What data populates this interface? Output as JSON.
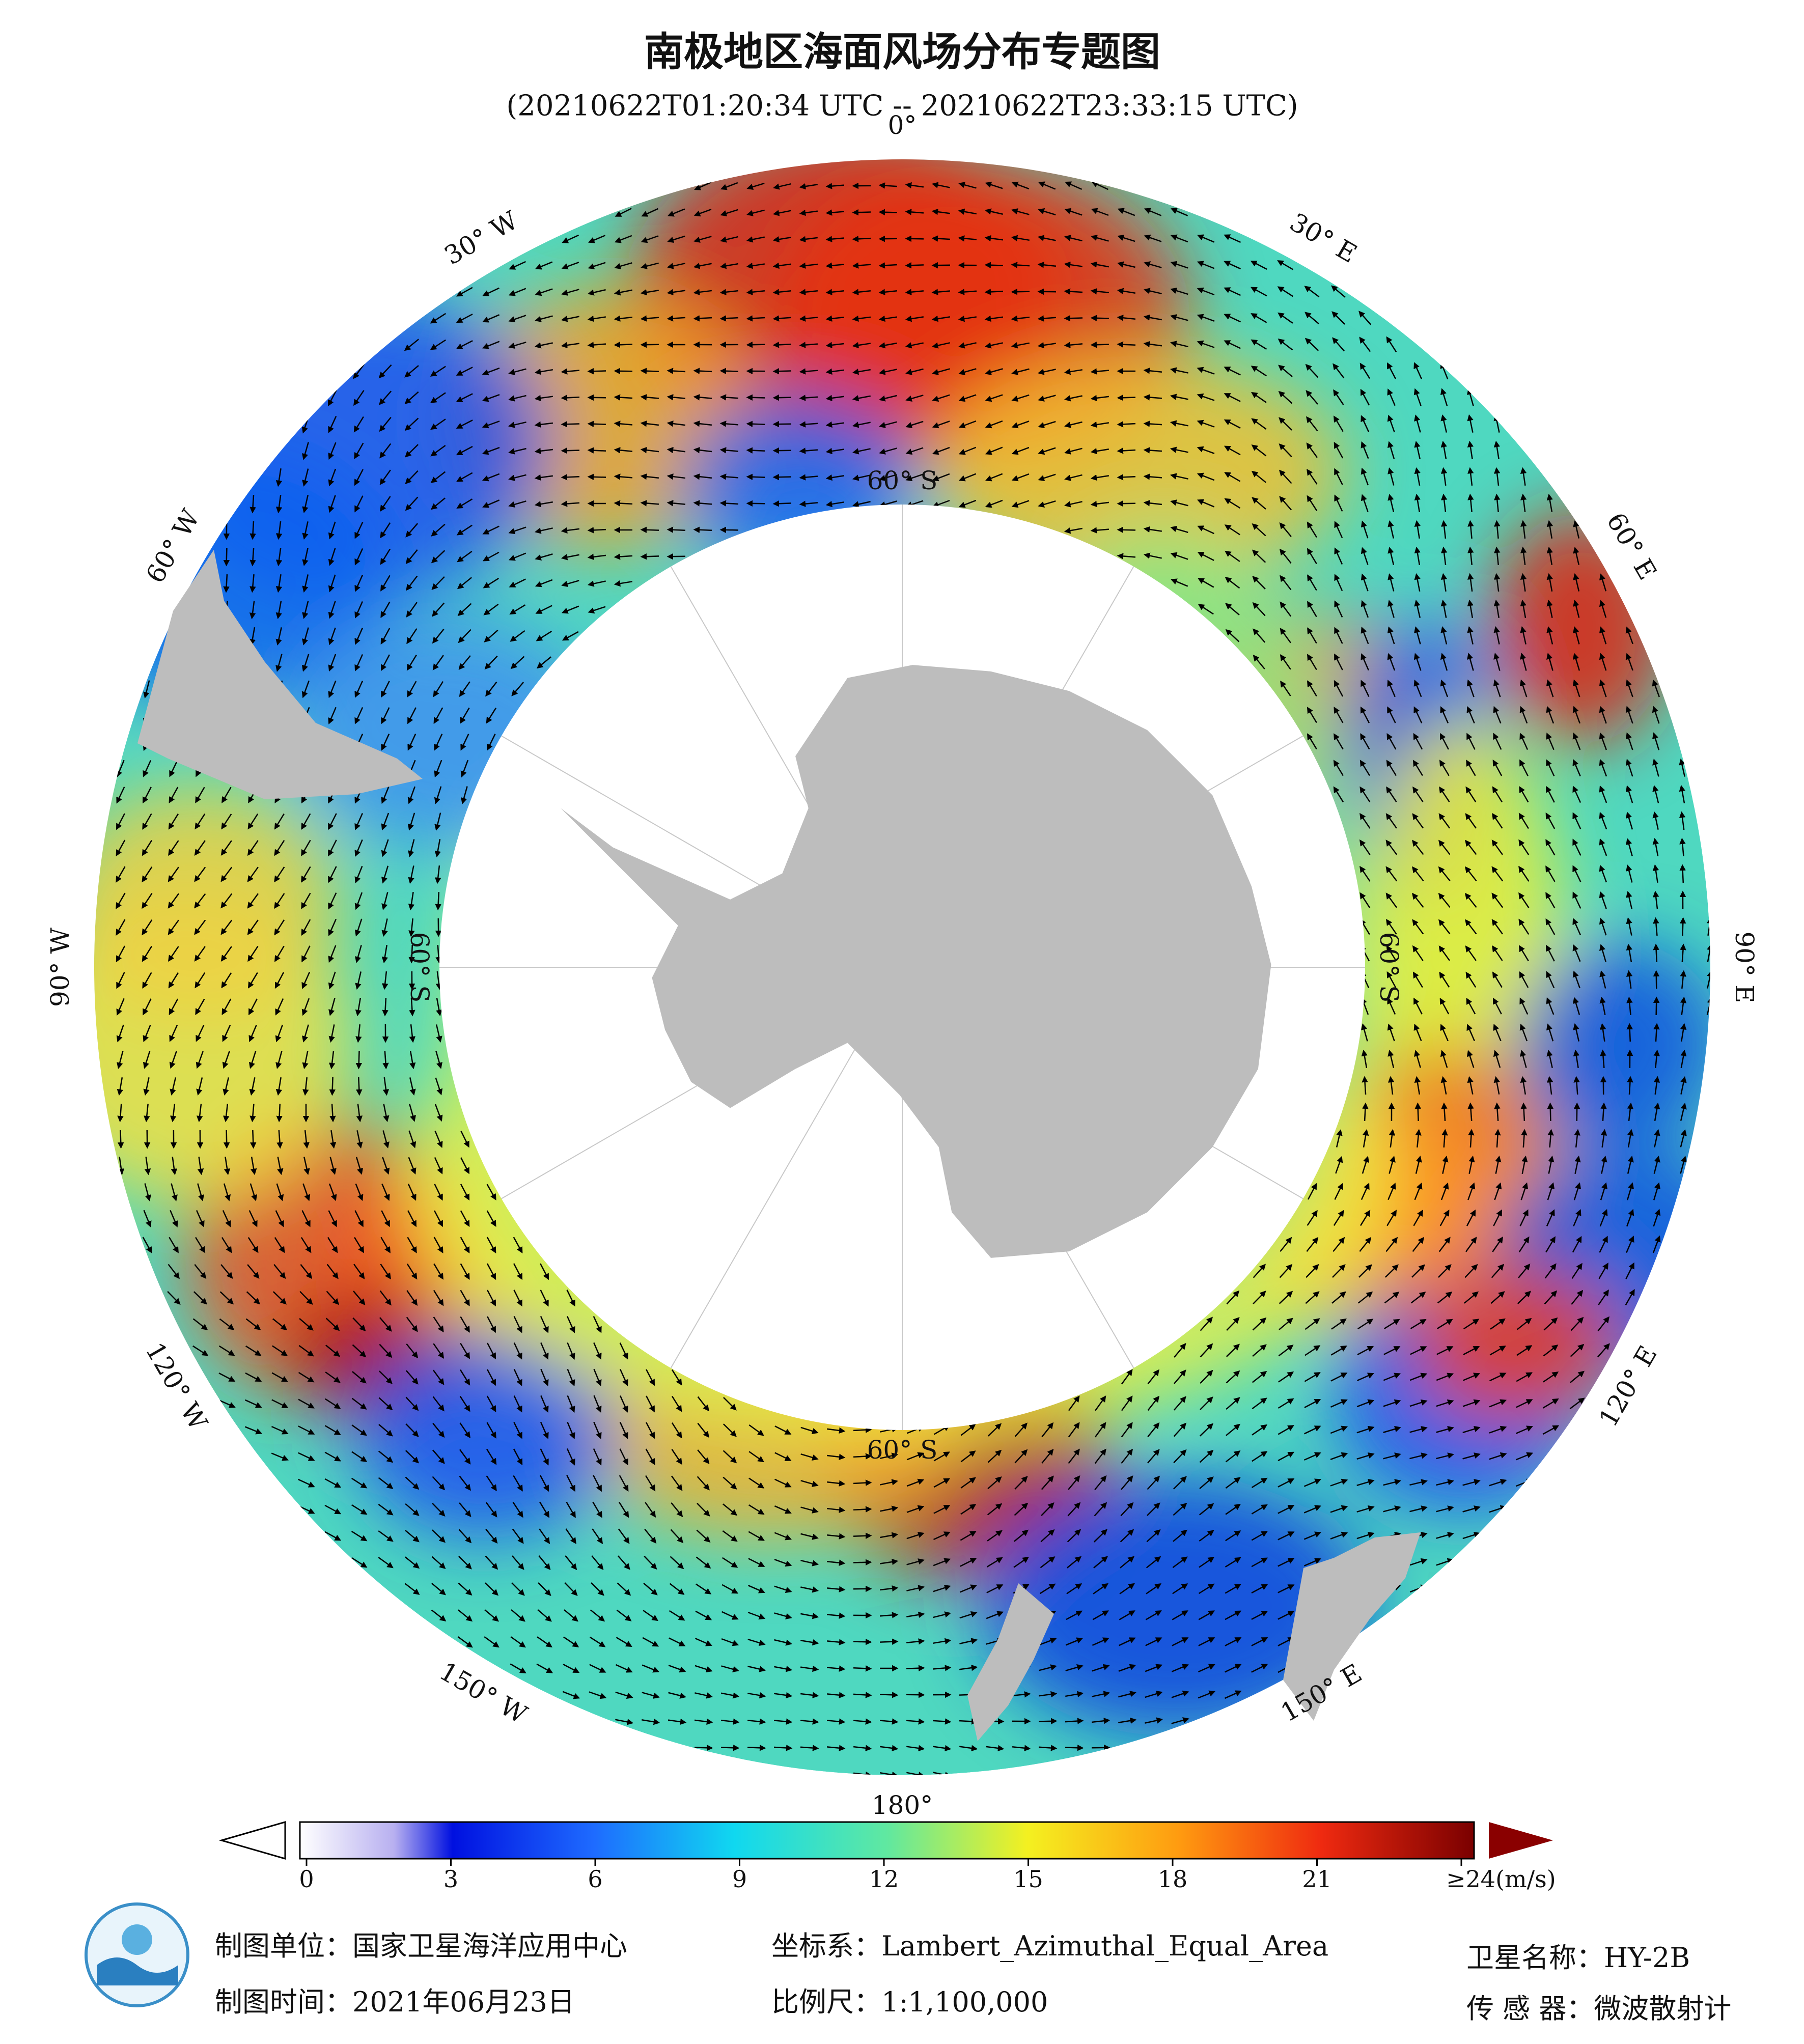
{
  "title": "南极地区海面风场分布专题图",
  "subtitle": "(20210622T01:20:34 UTC -- 20210622T23:33:15 UTC)",
  "map": {
    "meridian_labels": [
      "0°",
      "30° E",
      "60° E",
      "90° E",
      "120° E",
      "150° E",
      "180°",
      "150° W",
      "120° W",
      "90° W",
      "60° W",
      "30° W"
    ],
    "parallel_label": "60° S"
  },
  "colorbar": {
    "range": [
      0,
      24
    ],
    "ticks": [
      0,
      3,
      6,
      9,
      12,
      15,
      18,
      21,
      {
        "value": 24,
        "label": "≥24(m/s)"
      }
    ]
  },
  "footer": {
    "org": "制图单位：国家卫星海洋应用中心",
    "crs": "坐标系：Lambert_Azimuthal_Equal_Area",
    "satellite": "卫星名称：HY-2B",
    "date": "制图时间：2021年06月23日",
    "scale": "比例尺：1:1,100,000",
    "sensor": "传 感 器：微波散射计"
  }
}
